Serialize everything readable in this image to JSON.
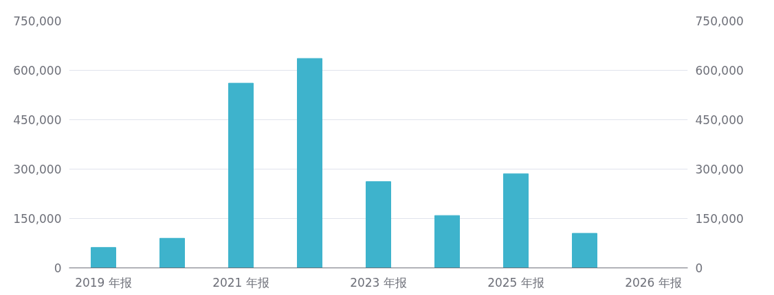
{
  "chart_data": {
    "type": "bar",
    "categories": [
      "2019 年报",
      null,
      "2021 年报",
      null,
      "2023 年报",
      null,
      "2025 年报",
      null,
      "2026 年报"
    ],
    "series": [
      {
        "color": "#3eb3cc",
        "values": [
          62000,
          90000,
          561000,
          636000,
          262000,
          159000,
          286000,
          105000,
          null
        ]
      }
    ],
    "ylim": [
      0,
      750000
    ],
    "yticks": [
      {
        "value": 0,
        "label": "0"
      },
      {
        "value": 150000,
        "label": "150,000"
      },
      {
        "value": 300000,
        "label": "300,000"
      },
      {
        "value": 450000,
        "label": "450,000"
      },
      {
        "value": 600000,
        "label": "600,000"
      },
      {
        "value": 750000,
        "label": "750,000"
      }
    ],
    "y2lim": [
      0,
      750000
    ],
    "y2ticks": [
      {
        "value": 0,
        "label": "0"
      },
      {
        "value": 150000,
        "label": "150,000"
      },
      {
        "value": 300000,
        "label": "300,000"
      },
      {
        "value": 450000,
        "label": "450,000"
      },
      {
        "value": 600000,
        "label": "600,000"
      },
      {
        "value": 750000,
        "label": "750,000"
      }
    ],
    "grid": "y"
  }
}
